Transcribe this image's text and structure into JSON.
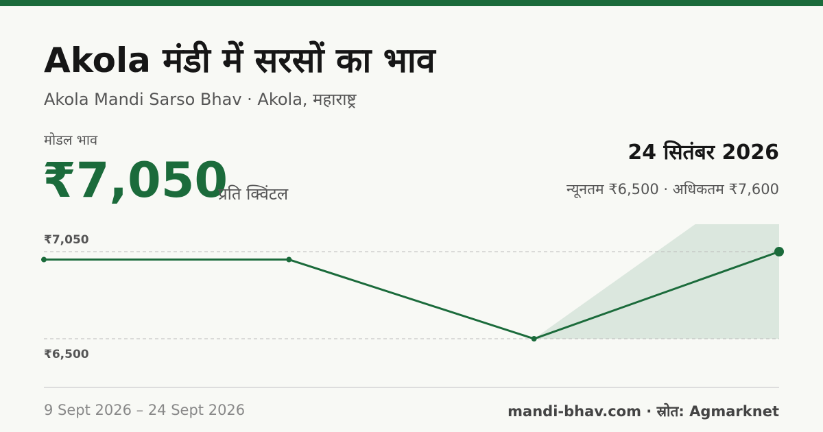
{
  "header": {
    "title": "Akola मंडी में सरसों का भाव",
    "subtitle": "Akola Mandi Sarso Bhav · Akola, महाराष्ट्र"
  },
  "price": {
    "label": "मोडल भाव",
    "value": "₹7,050",
    "unit": "प्रति क्विंटल",
    "date": "24 सितंबर 2026",
    "range_text": "न्यूनतम ₹6,500 · अधिकतम ₹7,600"
  },
  "chart_data": {
    "type": "line",
    "categories": [
      null,
      null,
      null,
      null
    ],
    "series": [
      {
        "color": "#1b6b3b",
        "values": [
          7000,
          7000,
          6500,
          7050
        ]
      }
    ],
    "range": {
      "min": 6500,
      "max": 7600,
      "color": "#dbe7de"
    },
    "ylim": [
      6500,
      7050
    ],
    "yticks": [
      {
        "value": 6500,
        "label": "₹6,500"
      },
      {
        "value": 7050,
        "label": "₹7,050"
      }
    ],
    "grid": true
  },
  "footer": {
    "period": "9 Sept 2026 – 24 Sept 2026",
    "source": "mandi-bhav.com · स्रोत: Agmarknet"
  }
}
